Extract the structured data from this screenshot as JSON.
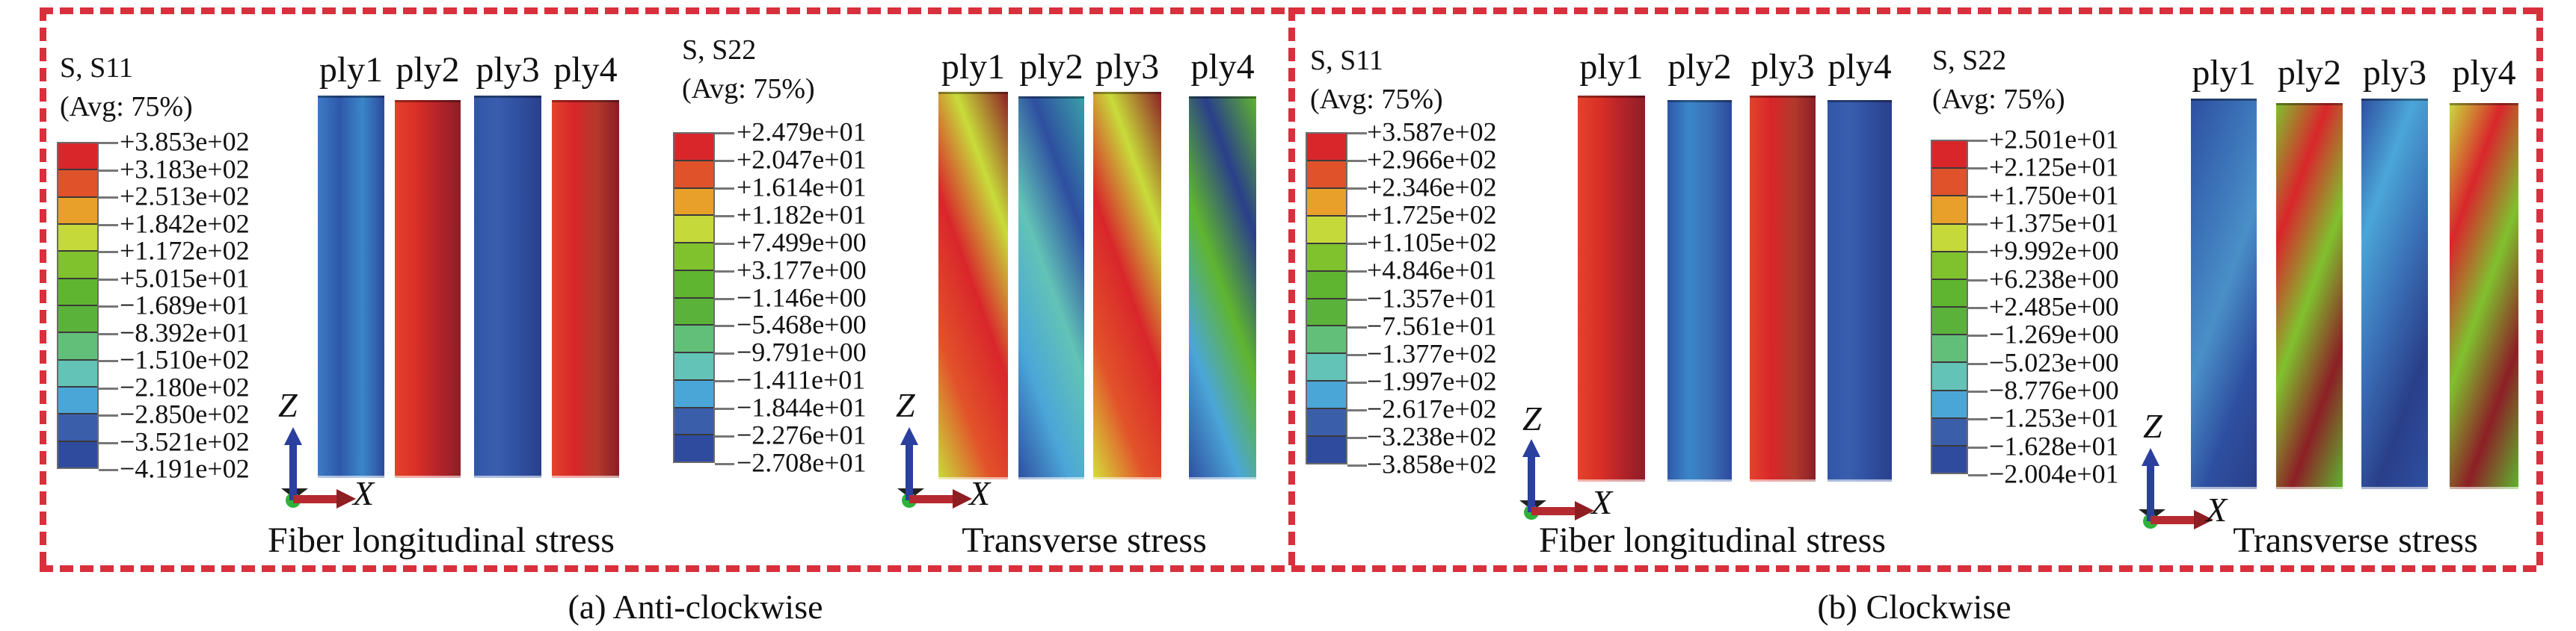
{
  "frame_color": "#d8303c",
  "legend_band_colors": [
    "#d9262b",
    "#e0522a",
    "#e8a02a",
    "#c6d93a",
    "#80c12e",
    "#5fb52f",
    "#5ab23a",
    "#62bf7a",
    "#62c3b6",
    "#4ba6d8",
    "#3b5eab",
    "#2e4b9e"
  ],
  "panels": [
    {
      "caption": "(a) Anti-clockwise",
      "plots": [
        {
          "legend": {
            "title": "S, S11",
            "avg": "(Avg: 75%)",
            "values": [
              "+3.853e+02",
              "+3.183e+02",
              "+2.513e+02",
              "+1.842e+02",
              "+1.172e+02",
              "+5.015e+01",
              "−1.689e+01",
              "−8.392e+01",
              "−1.510e+02",
              "−2.180e+02",
              "−2.850e+02",
              "−3.521e+02",
              "−4.191e+02"
            ]
          },
          "axis": {
            "z": "Z",
            "x": "X"
          },
          "subtitle": "Fiber longitudinal stress",
          "plies": [
            {
              "label": "ply1",
              "colors": [
                "#3d7cc4",
                "#2f58aa",
                "#3a86c8",
                "#2d4a9c"
              ]
            },
            {
              "label": "ply2",
              "colors": [
                "#e3412a",
                "#d92f26",
                "#b3232a",
                "#8c1f26"
              ]
            },
            {
              "label": "ply3",
              "colors": [
                "#3156a8",
                "#3a5eae",
                "#2f4f9f",
                "#2a3f8a"
              ]
            },
            {
              "label": "ply4",
              "colors": [
                "#e2442b",
                "#d8262a",
                "#b3392c",
                "#8a1e26"
              ]
            }
          ]
        },
        {
          "legend": {
            "title": "S, S22",
            "avg": "(Avg: 75%)",
            "values": [
              "+2.479e+01",
              "+2.047e+01",
              "+1.614e+01",
              "+1.182e+01",
              "+7.499e+00",
              "+3.177e+00",
              "−1.146e+00",
              "−5.468e+00",
              "−9.791e+00",
              "−1.411e+01",
              "−1.844e+01",
              "−2.276e+01",
              "−2.708e+01"
            ]
          },
          "axis": {
            "z": "Z",
            "x": "X"
          },
          "subtitle": "Transverse stress",
          "plies": [
            {
              "label": "ply1",
              "colors": [
                "#c8dc3a",
                "#e2522a",
                "#d9262b",
                "#c8dc3a",
                "#8c1f26"
              ]
            },
            {
              "label": "ply2",
              "colors": [
                "#2e4fa0",
                "#4ba6d8",
                "#62c3b6",
                "#2e4fa0",
                "#3aa0a8"
              ]
            },
            {
              "label": "ply3",
              "colors": [
                "#d4e03a",
                "#e2522a",
                "#d9262b",
                "#c8dc3a",
                "#8c1f26"
              ]
            },
            {
              "label": "ply4",
              "colors": [
                "#2e4fa0",
                "#4ba6d8",
                "#5fb52f",
                "#2a3f8a",
                "#5fb52f"
              ]
            }
          ]
        }
      ]
    },
    {
      "caption": "(b) Clockwise",
      "plots": [
        {
          "legend": {
            "title": "S, S11",
            "avg": "(Avg: 75%)",
            "values": [
              "+3.587e+02",
              "+2.966e+02",
              "+2.346e+02",
              "+1.725e+02",
              "+1.105e+02",
              "+4.846e+01",
              "−1.357e+01",
              "−7.561e+01",
              "−1.377e+02",
              "−1.997e+02",
              "−2.617e+02",
              "−3.238e+02",
              "−3.858e+02"
            ]
          },
          "axis": {
            "z": "Z",
            "x": "X"
          },
          "subtitle": "Fiber longitudinal stress",
          "plies": [
            {
              "label": "ply1",
              "colors": [
                "#e2442b",
                "#d92f26",
                "#b3232a",
                "#8c1f26"
              ]
            },
            {
              "label": "ply2",
              "colors": [
                "#2f58aa",
                "#3a86c8",
                "#3a6fb6",
                "#2d4a9c"
              ]
            },
            {
              "label": "ply3",
              "colors": [
                "#e2442b",
                "#d8262a",
                "#b3392c",
                "#8a1e26"
              ]
            },
            {
              "label": "ply4",
              "colors": [
                "#3156a8",
                "#3a5eae",
                "#2f4f9f",
                "#2a3f8a"
              ]
            }
          ]
        },
        {
          "legend": {
            "title": "S, S22",
            "avg": "(Avg: 75%)",
            "values": [
              "+2.501e+01",
              "+2.125e+01",
              "+1.750e+01",
              "+1.375e+01",
              "+9.992e+00",
              "+6.238e+00",
              "+2.485e+00",
              "−1.269e+00",
              "−5.023e+00",
              "−8.776e+00",
              "−1.253e+01",
              "−1.628e+01",
              "−2.004e+01"
            ]
          },
          "axis": {
            "z": "Z",
            "x": "X"
          },
          "subtitle": "Transverse stress",
          "plies": [
            {
              "label": "ply1",
              "colors": [
                "#2e4fa0",
                "#3a6fb6",
                "#4a8fc8",
                "#2e4fa0",
                "#2a3f8a"
              ]
            },
            {
              "label": "ply2",
              "colors": [
                "#80c12e",
                "#d9262b",
                "#80c12e",
                "#8c1f26",
                "#5fb52f"
              ]
            },
            {
              "label": "ply3",
              "colors": [
                "#2e4fa0",
                "#4ba6d8",
                "#3a6fb6",
                "#2a3f8a",
                "#2e4fa0"
              ]
            },
            {
              "label": "ply4",
              "colors": [
                "#c8dc3a",
                "#d9262b",
                "#80c12e",
                "#8c1f26",
                "#5fb52f"
              ]
            }
          ]
        }
      ]
    }
  ]
}
